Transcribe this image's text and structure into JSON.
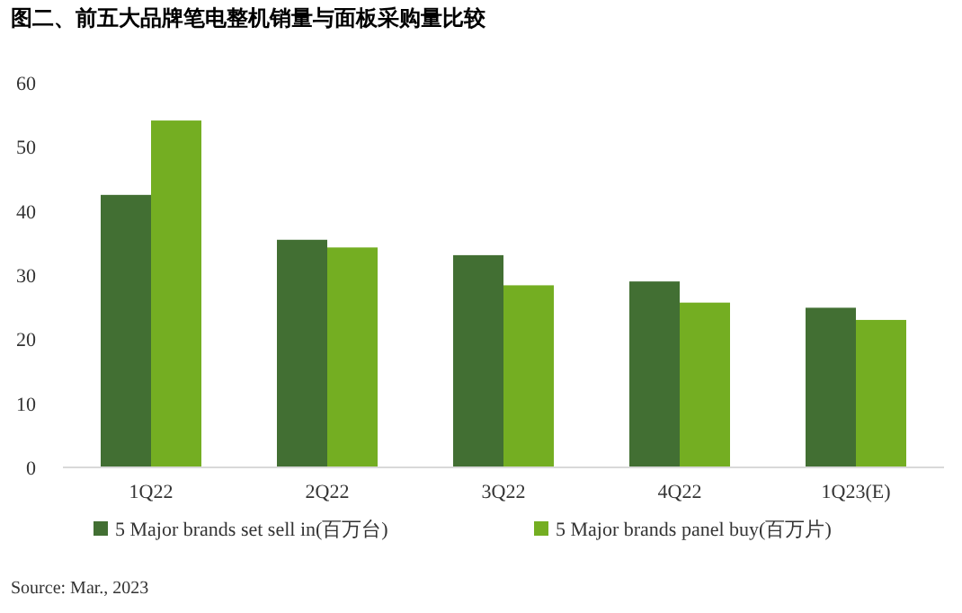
{
  "chart_data": {
    "type": "bar",
    "title": "图二、前五大品牌笔电整机销量与面板采购量比较",
    "categories": [
      "1Q22",
      "2Q22",
      "3Q22",
      "4Q22",
      "1Q23(E)"
    ],
    "series": [
      {
        "name": "5 Major brands set sell in(百万台)",
        "color": "#426f33",
        "values": [
          42.5,
          35.5,
          33.1,
          29.0,
          24.9
        ]
      },
      {
        "name": "5 Major brands panel buy(百万片)",
        "color": "#74ae22",
        "values": [
          54.1,
          34.3,
          28.4,
          25.7,
          23.0
        ]
      }
    ],
    "ylim": [
      0,
      60
    ],
    "yticks": [
      0,
      10,
      20,
      30,
      40,
      50,
      60
    ],
    "grid": false,
    "legend": "bottom",
    "annotations": [
      "Source: Mar., 2023"
    ]
  }
}
